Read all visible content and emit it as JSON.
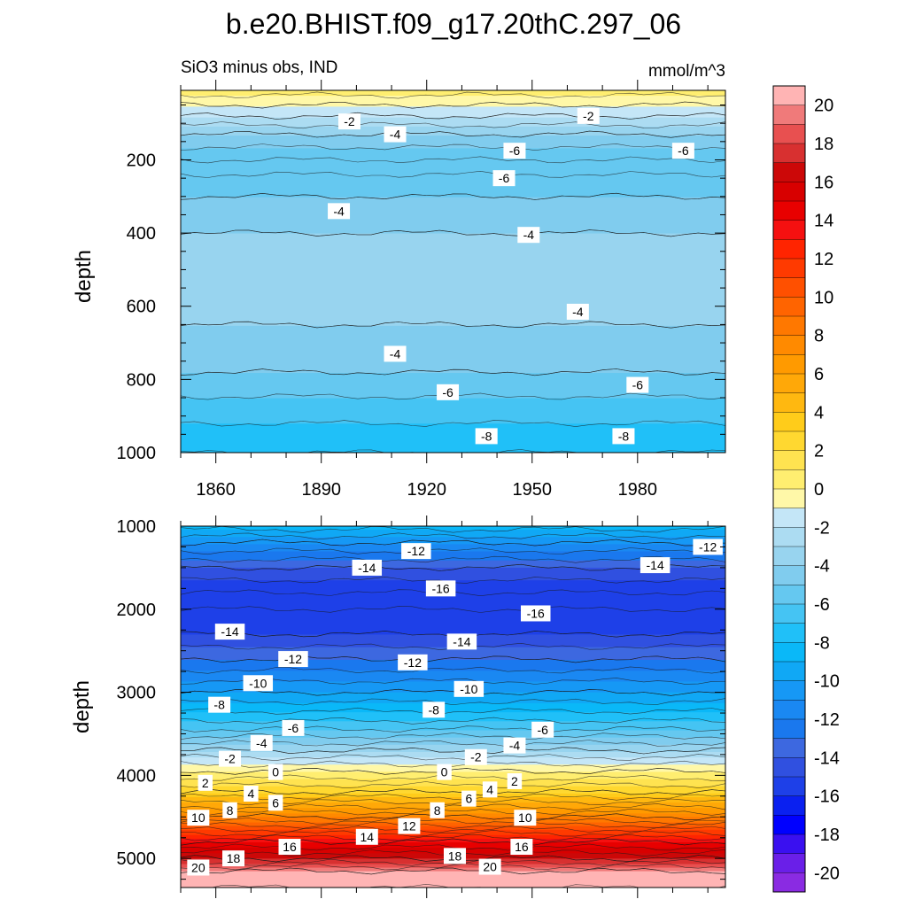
{
  "title": "b.e20.BHIST.f09_g17.20thC.297_06",
  "subtitle_left": "SiO3 minus obs, IND",
  "subtitle_right": "mmol/m^3",
  "chart_data": [
    {
      "type": "contour",
      "panel": "upper",
      "xlabel": "",
      "ylabel": "depth",
      "xlim": [
        1850,
        2005
      ],
      "ylim": [
        1000,
        10
      ],
      "x_ticks": [
        "1860",
        "1890",
        "1920",
        "1950",
        "1980"
      ],
      "y_ticks": [
        "200",
        "400",
        "600",
        "800",
        "1000"
      ],
      "depth_profile": [
        {
          "depth": 10,
          "value": 0.5
        },
        {
          "depth": 50,
          "value": -1
        },
        {
          "depth": 80,
          "value": -2
        },
        {
          "depth": 130,
          "value": -4
        },
        {
          "depth": 200,
          "value": -6
        },
        {
          "depth": 240,
          "value": -6
        },
        {
          "depth": 300,
          "value": -5
        },
        {
          "depth": 400,
          "value": -4
        },
        {
          "depth": 520,
          "value": -3.5
        },
        {
          "depth": 650,
          "value": -4
        },
        {
          "depth": 780,
          "value": -5
        },
        {
          "depth": 880,
          "value": -6.5
        },
        {
          "depth": 1000,
          "value": -8
        }
      ],
      "contour_labels": [
        {
          "text": "-2",
          "year": 1898,
          "depth": 95
        },
        {
          "text": "-4",
          "year": 1911,
          "depth": 130
        },
        {
          "text": "-2",
          "year": 1966,
          "depth": 80
        },
        {
          "text": "-6",
          "year": 1945,
          "depth": 175
        },
        {
          "text": "-6",
          "year": 1993,
          "depth": 175
        },
        {
          "text": "-6",
          "year": 1942,
          "depth": 250
        },
        {
          "text": "-4",
          "year": 1895,
          "depth": 340
        },
        {
          "text": "-4",
          "year": 1949,
          "depth": 405
        },
        {
          "text": "-4",
          "year": 1963,
          "depth": 615
        },
        {
          "text": "-4",
          "year": 1911,
          "depth": 730
        },
        {
          "text": "-6",
          "year": 1926,
          "depth": 835
        },
        {
          "text": "-6",
          "year": 1980,
          "depth": 815
        },
        {
          "text": "-8",
          "year": 1937,
          "depth": 955
        },
        {
          "text": "-8",
          "year": 1976,
          "depth": 955
        }
      ]
    },
    {
      "type": "contour",
      "panel": "lower",
      "xlabel": "",
      "ylabel": "depth",
      "xlim": [
        1850,
        2005
      ],
      "ylim": [
        5350,
        1000
      ],
      "x_ticks": [],
      "y_ticks": [
        "1000",
        "2000",
        "3000",
        "4000",
        "5000"
      ],
      "depth_profile": [
        {
          "depth": 1000,
          "value": -8.5
        },
        {
          "depth": 1200,
          "value": -11
        },
        {
          "depth": 1500,
          "value": -14
        },
        {
          "depth": 1800,
          "value": -16
        },
        {
          "depth": 2000,
          "value": -16
        },
        {
          "depth": 2300,
          "value": -15
        },
        {
          "depth": 2600,
          "value": -13
        },
        {
          "depth": 3000,
          "value": -10
        },
        {
          "depth": 3400,
          "value": -6.5
        },
        {
          "depth": 3700,
          "value": -3
        },
        {
          "depth": 3950,
          "value": 0
        },
        {
          "depth": 4200,
          "value": 3
        },
        {
          "depth": 4500,
          "value": 8
        },
        {
          "depth": 4800,
          "value": 14
        },
        {
          "depth": 5000,
          "value": 17
        },
        {
          "depth": 5150,
          "value": 20
        },
        {
          "depth": 5350,
          "value": 21
        }
      ],
      "contour_labels": [
        {
          "text": "-12",
          "year": 1917,
          "depth": 1300
        },
        {
          "text": "-12",
          "year": 2000,
          "depth": 1250
        },
        {
          "text": "-14",
          "year": 1903,
          "depth": 1500
        },
        {
          "text": "-14",
          "year": 1985,
          "depth": 1470
        },
        {
          "text": "-16",
          "year": 1924,
          "depth": 1750
        },
        {
          "text": "-16",
          "year": 1951,
          "depth": 2050
        },
        {
          "text": "-14",
          "year": 1864,
          "depth": 2270
        },
        {
          "text": "-14",
          "year": 1930,
          "depth": 2390
        },
        {
          "text": "-12",
          "year": 1882,
          "depth": 2600
        },
        {
          "text": "-12",
          "year": 1916,
          "depth": 2640
        },
        {
          "text": "-10",
          "year": 1872,
          "depth": 2890
        },
        {
          "text": "-10",
          "year": 1932,
          "depth": 2960
        },
        {
          "text": "-8",
          "year": 1861,
          "depth": 3150
        },
        {
          "text": "-8",
          "year": 1922,
          "depth": 3210
        },
        {
          "text": "-6",
          "year": 1882,
          "depth": 3430
        },
        {
          "text": "-6",
          "year": 1953,
          "depth": 3450
        },
        {
          "text": "-4",
          "year": 1873,
          "depth": 3610
        },
        {
          "text": "-4",
          "year": 1945,
          "depth": 3640
        },
        {
          "text": "-2",
          "year": 1864,
          "depth": 3800
        },
        {
          "text": "-2",
          "year": 1934,
          "depth": 3780
        },
        {
          "text": "0",
          "year": 1877,
          "depth": 3960
        },
        {
          "text": "0",
          "year": 1925,
          "depth": 3960
        },
        {
          "text": "2",
          "year": 1857,
          "depth": 4090
        },
        {
          "text": "2",
          "year": 1945,
          "depth": 4070
        },
        {
          "text": "4",
          "year": 1870,
          "depth": 4220
        },
        {
          "text": "4",
          "year": 1938,
          "depth": 4170
        },
        {
          "text": "6",
          "year": 1877,
          "depth": 4330
        },
        {
          "text": "6",
          "year": 1932,
          "depth": 4280
        },
        {
          "text": "8",
          "year": 1864,
          "depth": 4420
        },
        {
          "text": "8",
          "year": 1923,
          "depth": 4420
        },
        {
          "text": "10",
          "year": 1855,
          "depth": 4510
        },
        {
          "text": "10",
          "year": 1948,
          "depth": 4510
        },
        {
          "text": "12",
          "year": 1915,
          "depth": 4610
        },
        {
          "text": "14",
          "year": 1903,
          "depth": 4740
        },
        {
          "text": "16",
          "year": 1881,
          "depth": 4860
        },
        {
          "text": "16",
          "year": 1947,
          "depth": 4860
        },
        {
          "text": "18",
          "year": 1865,
          "depth": 5000
        },
        {
          "text": "18",
          "year": 1928,
          "depth": 4970
        },
        {
          "text": "20",
          "year": 1855,
          "depth": 5110
        },
        {
          "text": "20",
          "year": 1938,
          "depth": 5100
        }
      ]
    }
  ],
  "colorbar": {
    "labels": [
      "20",
      "18",
      "16",
      "14",
      "12",
      "10",
      "8",
      "6",
      "4",
      "2",
      "0",
      "-2",
      "-4",
      "-6",
      "-8",
      "-10",
      "-12",
      "-14",
      "-16",
      "-18",
      "-20"
    ],
    "levels": [
      -21,
      -20,
      -19,
      -18,
      -17,
      -16,
      -15,
      -14,
      -13,
      -12,
      -11,
      -10,
      -9,
      -8,
      -7,
      -6,
      -5,
      -4,
      -3,
      -2,
      -1,
      0,
      1,
      2,
      3,
      4,
      5,
      6,
      7,
      8,
      9,
      10,
      11,
      12,
      13,
      14,
      15,
      16,
      17,
      18,
      19,
      20,
      21
    ],
    "colors": [
      "#8a2be2",
      "#6a1fe8",
      "#3a10f0",
      "#0000ff",
      "#0a20f0",
      "#1e40e8",
      "#3050e0",
      "#3d68e0",
      "#1a78ee",
      "#1a88f2",
      "#1698f5",
      "#10a8f5",
      "#0ab8f8",
      "#20c0f8",
      "#45c4f3",
      "#65c8f0",
      "#80ccee",
      "#98d4ef",
      "#acdcf2",
      "#c4e6f7",
      "#fff8a8",
      "#ffee70",
      "#ffe350",
      "#ffd830",
      "#ffcc1a",
      "#ffb810",
      "#ffa808",
      "#ff9a00",
      "#ff8a00",
      "#ff7800",
      "#ff6400",
      "#ff5000",
      "#ff3a00",
      "#ff2400",
      "#f51010",
      "#e80000",
      "#d80000",
      "#cc0808",
      "#d83030",
      "#e85050",
      "#f07a7a",
      "#ffb4b4"
    ]
  }
}
